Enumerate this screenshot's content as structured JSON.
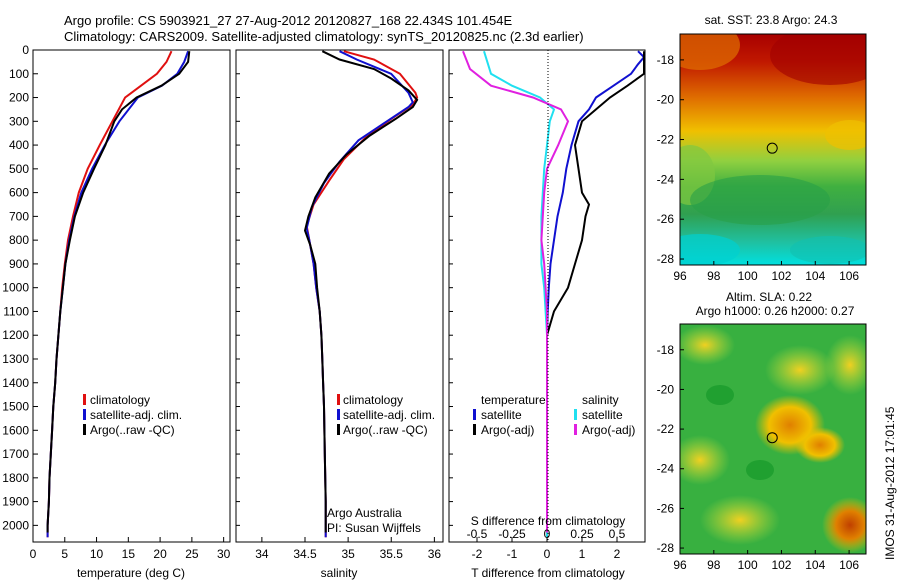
{
  "header": {
    "line1": "Argo profile: CS 5903921_27 27-Aug-2012 20120827_168 22.434S 101.454E",
    "line2": "Climatology: CARS2009. Satellite-adjusted climatology: synTS_20120825.nc (2.3d earlier)"
  },
  "colors": {
    "climatology": "#e01010",
    "satellite": "#1010d0",
    "argo": "#000000",
    "salinity_satellite": "#20e0f0",
    "salinity_argo": "#e020e0"
  },
  "panels": {
    "temperature": {
      "xlabel": "temperature (deg C)",
      "xticks": [
        "0",
        "5",
        "10",
        "15",
        "20",
        "25",
        "30"
      ],
      "legend": [
        "climatology",
        "satellite-adj. clim.",
        "Argo(..raw -QC)"
      ]
    },
    "salinity": {
      "xlabel": "salinity",
      "xticks": [
        "34",
        "34.5",
        "35",
        "35.5",
        "36"
      ],
      "legend": [
        "climatology",
        "satellite-adj. clim.",
        "Argo(..raw -QC)"
      ],
      "note1": "Argo Australia",
      "note2": "PI: Susan Wijffels"
    },
    "difference": {
      "xlabel": "T difference from climatology",
      "xticks": [
        "-2",
        "-1",
        "0",
        "1",
        "2"
      ],
      "top_label": "S difference from climatology",
      "top_ticks": [
        "-0.5",
        "-0.25",
        "0",
        "0.25",
        "0.5"
      ],
      "legend_temp_title": "temperature",
      "legend_sal_title": "salinity",
      "legend_temp": [
        "satellite",
        "Argo(-adj)"
      ],
      "legend_sal": [
        "satellite",
        "Argo(-adj)"
      ]
    },
    "depth_ticks": [
      "0",
      "100",
      "200",
      "300",
      "400",
      "500",
      "600",
      "700",
      "800",
      "900",
      "1000",
      "1100",
      "1200",
      "1300",
      "1400",
      "1500",
      "1600",
      "1700",
      "1800",
      "1900",
      "2000"
    ]
  },
  "maps": {
    "sst_title": "sat. SST: 23.8 Argo: 24.3",
    "sla_title1": "Altim. SLA: 0.22",
    "sla_title2": "Argo h1000: 0.26 h2000: 0.27",
    "lat_ticks_top": [
      "-18",
      "-20",
      "-22",
      "-24",
      "-26",
      "-28"
    ],
    "lat_ticks_bottom": [
      "-18",
      "-20",
      "-22",
      "-24",
      "-26",
      "-28"
    ],
    "lon_ticks": [
      "96",
      "98",
      "100",
      "102",
      "104",
      "106"
    ],
    "argo_lon": 101.454,
    "argo_lat": -22.434
  },
  "footer": {
    "stamp": "IMOS 31-Aug-2012 17:01:45"
  },
  "chart_data": [
    {
      "type": "line",
      "panel": "temperature",
      "xlabel": "temperature (deg C)",
      "ylabel": "",
      "xlim": [
        0,
        31
      ],
      "ylim": [
        2070,
        0
      ],
      "y_inverted": true,
      "series": [
        {
          "name": "climatology",
          "points": [
            [
              21.8,
              5
            ],
            [
              21.0,
              50
            ],
            [
              19.5,
              100
            ],
            [
              17.0,
              150
            ],
            [
              14.5,
              200
            ],
            [
              12.5,
              300
            ],
            [
              10.5,
              400
            ],
            [
              8.6,
              500
            ],
            [
              7.2,
              600
            ],
            [
              6.3,
              700
            ],
            [
              5.5,
              800
            ],
            [
              5.0,
              900
            ],
            [
              4.6,
              1000
            ],
            [
              4.3,
              1100
            ],
            [
              4.0,
              1200
            ],
            [
              3.7,
              1300
            ],
            [
              3.5,
              1400
            ],
            [
              3.2,
              1500
            ],
            [
              3.0,
              1600
            ],
            [
              2.8,
              1700
            ],
            [
              2.6,
              1800
            ],
            [
              2.5,
              1900
            ],
            [
              2.3,
              2000
            ],
            [
              2.3,
              2050
            ]
          ]
        },
        {
          "name": "satellite-adj. clim.",
          "points": [
            [
              24.4,
              5
            ],
            [
              23.8,
              50
            ],
            [
              22.7,
              100
            ],
            [
              20.3,
              150
            ],
            [
              16.5,
              200
            ],
            [
              13.6,
              300
            ],
            [
              11.3,
              400
            ],
            [
              9.3,
              500
            ],
            [
              7.6,
              600
            ],
            [
              6.5,
              700
            ],
            [
              5.7,
              800
            ],
            [
              5.1,
              900
            ],
            [
              4.7,
              1000
            ],
            [
              4.3,
              1100
            ],
            [
              4.0,
              1200
            ],
            [
              3.7,
              1300
            ],
            [
              3.5,
              1400
            ],
            [
              3.2,
              1500
            ],
            [
              3.0,
              1600
            ],
            [
              2.8,
              1700
            ],
            [
              2.6,
              1800
            ],
            [
              2.5,
              1900
            ],
            [
              2.3,
              2000
            ],
            [
              2.3,
              2050
            ]
          ]
        },
        {
          "name": "Argo(..raw -QC)",
          "points": [
            [
              24.6,
              5
            ],
            [
              24.4,
              50
            ],
            [
              23.0,
              100
            ],
            [
              20.2,
              150
            ],
            [
              16.3,
              200
            ],
            [
              14.0,
              250
            ],
            [
              12.8,
              300
            ],
            [
              11.4,
              400
            ],
            [
              9.6,
              500
            ],
            [
              7.9,
              600
            ],
            [
              6.6,
              700
            ],
            [
              5.8,
              800
            ],
            [
              5.1,
              900
            ],
            [
              4.7,
              1000
            ],
            [
              4.3,
              1100
            ],
            [
              4.0,
              1200
            ],
            [
              3.7,
              1300
            ],
            [
              3.5,
              1400
            ],
            [
              3.2,
              1500
            ],
            [
              3.0,
              1600
            ],
            [
              2.8,
              1700
            ],
            [
              2.6,
              1800
            ],
            [
              2.5,
              1900
            ],
            [
              2.3,
              2000
            ],
            [
              2.3,
              2030
            ]
          ]
        }
      ]
    },
    {
      "type": "line",
      "panel": "salinity",
      "xlabel": "salinity",
      "ylabel": "",
      "xlim": [
        33.7,
        36.1
      ],
      "ylim": [
        2070,
        0
      ],
      "y_inverted": true,
      "series": [
        {
          "name": "climatology",
          "points": [
            [
              34.95,
              5
            ],
            [
              35.3,
              40
            ],
            [
              35.6,
              100
            ],
            [
              35.78,
              180
            ],
            [
              35.8,
              200
            ],
            [
              35.75,
              230
            ],
            [
              35.5,
              290
            ],
            [
              35.2,
              370
            ],
            [
              34.95,
              460
            ],
            [
              34.78,
              550
            ],
            [
              34.6,
              650
            ],
            [
              34.52,
              740
            ],
            [
              34.55,
              800
            ],
            [
              34.6,
              900
            ],
            [
              34.63,
              1000
            ],
            [
              34.67,
              1100
            ],
            [
              34.69,
              1200
            ],
            [
              34.7,
              1300
            ],
            [
              34.71,
              1400
            ],
            [
              34.72,
              1500
            ],
            [
              34.73,
              1700
            ],
            [
              34.74,
              1900
            ],
            [
              34.74,
              2050
            ]
          ]
        },
        {
          "name": "satellite-adj. clim.",
          "points": [
            [
              34.9,
              5
            ],
            [
              35.1,
              40
            ],
            [
              35.5,
              100
            ],
            [
              35.7,
              180
            ],
            [
              35.75,
              220
            ],
            [
              35.7,
              240
            ],
            [
              35.45,
              300
            ],
            [
              35.12,
              380
            ],
            [
              34.9,
              470
            ],
            [
              34.72,
              560
            ],
            [
              34.58,
              660
            ],
            [
              34.52,
              750
            ],
            [
              34.55,
              800
            ],
            [
              34.6,
              900
            ],
            [
              34.63,
              1000
            ],
            [
              34.67,
              1100
            ],
            [
              34.69,
              1200
            ],
            [
              34.7,
              1300
            ],
            [
              34.71,
              1400
            ],
            [
              34.72,
              1500
            ],
            [
              34.73,
              1700
            ],
            [
              34.74,
              1900
            ],
            [
              34.74,
              2050
            ]
          ]
        },
        {
          "name": "Argo(..raw -QC)",
          "points": [
            [
              34.7,
              5
            ],
            [
              34.9,
              40
            ],
            [
              35.3,
              80
            ],
            [
              35.5,
              120
            ],
            [
              35.7,
              170
            ],
            [
              35.8,
              210
            ],
            [
              35.75,
              240
            ],
            [
              35.55,
              290
            ],
            [
              35.25,
              360
            ],
            [
              34.98,
              440
            ],
            [
              34.78,
              520
            ],
            [
              34.62,
              620
            ],
            [
              34.54,
              700
            ],
            [
              34.5,
              760
            ],
            [
              34.56,
              820
            ],
            [
              34.62,
              900
            ],
            [
              34.64,
              1000
            ],
            [
              34.67,
              1100
            ],
            [
              34.69,
              1200
            ],
            [
              34.7,
              1300
            ],
            [
              34.71,
              1400
            ],
            [
              34.72,
              1500
            ],
            [
              34.73,
              1700
            ],
            [
              34.74,
              1900
            ],
            [
              34.74,
              2030
            ]
          ]
        }
      ]
    },
    {
      "type": "line",
      "panel": "difference",
      "xlabel": "T difference from climatology",
      "top_xlabel": "S difference from climatology",
      "xlim": [
        -2.8,
        2.8
      ],
      "top_xlim": [
        -0.7,
        0.7
      ],
      "ylim": [
        2070,
        0
      ],
      "y_inverted": true,
      "series": [
        {
          "name": "satellite",
          "group": "temperature",
          "points": [
            [
              2.6,
              5
            ],
            [
              2.8,
              30
            ],
            [
              2.6,
              60
            ],
            [
              2.4,
              100
            ],
            [
              1.9,
              150
            ],
            [
              1.4,
              200
            ],
            [
              1.2,
              250
            ],
            [
              0.9,
              300
            ],
            [
              0.8,
              350
            ],
            [
              0.7,
              400
            ],
            [
              0.55,
              500
            ],
            [
              0.45,
              600
            ],
            [
              0.3,
              700
            ],
            [
              0.2,
              800
            ],
            [
              0.1,
              900
            ],
            [
              0.05,
              1000
            ],
            [
              0.02,
              1100
            ],
            [
              0.0,
              1200
            ],
            [
              0.0,
              1500
            ],
            [
              0.0,
              2050
            ]
          ]
        },
        {
          "name": "Argo(-adj)",
          "group": "temperature",
          "points": [
            [
              2.8,
              5
            ],
            [
              3.0,
              30
            ],
            [
              2.9,
              60
            ],
            [
              3.0,
              100
            ],
            [
              2.3,
              150
            ],
            [
              1.8,
              200
            ],
            [
              1.4,
              250
            ],
            [
              1.0,
              300
            ],
            [
              0.8,
              400
            ],
            [
              0.9,
              500
            ],
            [
              1.0,
              600
            ],
            [
              1.2,
              650
            ],
            [
              1.1,
              700
            ],
            [
              1.0,
              800
            ],
            [
              0.8,
              900
            ],
            [
              0.6,
              1000
            ],
            [
              0.2,
              1100
            ],
            [
              0.0,
              1200
            ],
            [
              0.0,
              1500
            ],
            [
              0.0,
              2030
            ]
          ]
        },
        {
          "name": "satellite",
          "group": "salinity",
          "points": [
            [
              -0.45,
              5
            ],
            [
              -0.4,
              100
            ],
            [
              -0.25,
              150
            ],
            [
              -0.05,
              200
            ],
            [
              0.05,
              250
            ],
            [
              0.02,
              300
            ],
            [
              0.0,
              400
            ],
            [
              -0.02,
              500
            ],
            [
              -0.04,
              700
            ],
            [
              -0.04,
              900
            ],
            [
              -0.02,
              1000
            ],
            [
              -0.01,
              1100
            ],
            [
              0.0,
              1200
            ],
            [
              0.0,
              2050
            ]
          ]
        },
        {
          "name": "Argo(-adj)",
          "group": "salinity",
          "points": [
            [
              -0.6,
              5
            ],
            [
              -0.55,
              80
            ],
            [
              -0.4,
              150
            ],
            [
              -0.1,
              200
            ],
            [
              0.1,
              250
            ],
            [
              0.15,
              300
            ],
            [
              0.08,
              400
            ],
            [
              0.0,
              500
            ],
            [
              -0.02,
              600
            ],
            [
              -0.03,
              700
            ],
            [
              -0.04,
              800
            ],
            [
              -0.02,
              900
            ],
            [
              -0.01,
              1000
            ],
            [
              0.0,
              1100
            ],
            [
              0.0,
              2030
            ]
          ]
        }
      ]
    },
    {
      "type": "heatmap",
      "panel": "sat. SST map",
      "title": "sat. SST: 23.8 Argo: 24.3",
      "xlim": [
        96,
        107
      ],
      "ylim": [
        -28.3,
        -16.7
      ]
    },
    {
      "type": "heatmap",
      "panel": "Altim. SLA map",
      "title": "Altim. SLA: 0.22",
      "xlim": [
        96,
        107
      ],
      "ylim": [
        -28.3,
        -16.7
      ]
    }
  ]
}
